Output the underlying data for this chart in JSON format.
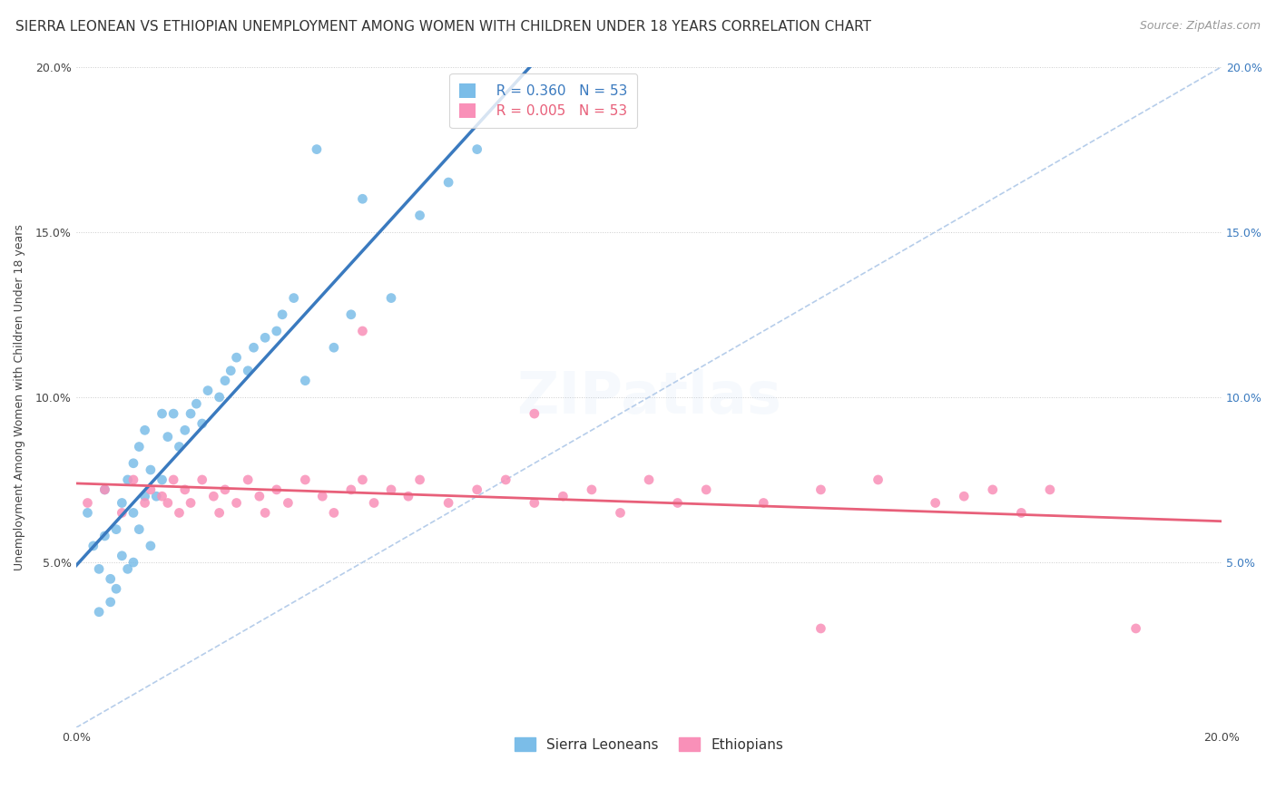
{
  "title": "SIERRA LEONEAN VS ETHIOPIAN UNEMPLOYMENT AMONG WOMEN WITH CHILDREN UNDER 18 YEARS CORRELATION CHART",
  "source": "Source: ZipAtlas.com",
  "ylabel": "Unemployment Among Women with Children Under 18 years",
  "xlim": [
    0.0,
    0.2
  ],
  "ylim": [
    0.0,
    0.2
  ],
  "sierra_leonean_color": "#7bbde8",
  "ethiopian_color": "#f990b8",
  "sierra_trend_color": "#3a7abf",
  "ethiopian_trend_color": "#e8607a",
  "dashed_line_color": "#aec8e8",
  "background_color": "#ffffff",
  "title_fontsize": 11,
  "source_fontsize": 9,
  "label_fontsize": 9,
  "tick_fontsize": 9,
  "legend_fontsize": 11,
  "watermark_alpha": 0.1,
  "sl_x": [
    0.002,
    0.003,
    0.004,
    0.004,
    0.005,
    0.005,
    0.006,
    0.006,
    0.007,
    0.007,
    0.008,
    0.008,
    0.009,
    0.009,
    0.01,
    0.01,
    0.01,
    0.011,
    0.011,
    0.012,
    0.012,
    0.013,
    0.013,
    0.014,
    0.015,
    0.015,
    0.016,
    0.017,
    0.018,
    0.019,
    0.02,
    0.021,
    0.022,
    0.023,
    0.025,
    0.026,
    0.027,
    0.028,
    0.03,
    0.031,
    0.033,
    0.035,
    0.036,
    0.038,
    0.04,
    0.042,
    0.045,
    0.048,
    0.05,
    0.055,
    0.06,
    0.065,
    0.07
  ],
  "sl_y": [
    0.065,
    0.055,
    0.048,
    0.035,
    0.072,
    0.058,
    0.045,
    0.038,
    0.06,
    0.042,
    0.068,
    0.052,
    0.075,
    0.048,
    0.08,
    0.065,
    0.05,
    0.085,
    0.06,
    0.09,
    0.07,
    0.078,
    0.055,
    0.07,
    0.095,
    0.075,
    0.088,
    0.095,
    0.085,
    0.09,
    0.095,
    0.098,
    0.092,
    0.102,
    0.1,
    0.105,
    0.108,
    0.112,
    0.108,
    0.115,
    0.118,
    0.12,
    0.125,
    0.13,
    0.105,
    0.175,
    0.115,
    0.125,
    0.16,
    0.13,
    0.155,
    0.165,
    0.175
  ],
  "eth_x": [
    0.002,
    0.005,
    0.008,
    0.01,
    0.012,
    0.013,
    0.015,
    0.016,
    0.017,
    0.018,
    0.019,
    0.02,
    0.022,
    0.024,
    0.025,
    0.026,
    0.028,
    0.03,
    0.032,
    0.033,
    0.035,
    0.037,
    0.04,
    0.043,
    0.045,
    0.048,
    0.05,
    0.052,
    0.055,
    0.058,
    0.06,
    0.065,
    0.07,
    0.075,
    0.08,
    0.085,
    0.09,
    0.095,
    0.1,
    0.105,
    0.11,
    0.12,
    0.13,
    0.14,
    0.15,
    0.155,
    0.16,
    0.165,
    0.17,
    0.05,
    0.08,
    0.13,
    0.185
  ],
  "eth_y": [
    0.068,
    0.072,
    0.065,
    0.075,
    0.068,
    0.072,
    0.07,
    0.068,
    0.075,
    0.065,
    0.072,
    0.068,
    0.075,
    0.07,
    0.065,
    0.072,
    0.068,
    0.075,
    0.07,
    0.065,
    0.072,
    0.068,
    0.075,
    0.07,
    0.065,
    0.072,
    0.075,
    0.068,
    0.072,
    0.07,
    0.075,
    0.068,
    0.072,
    0.075,
    0.068,
    0.07,
    0.072,
    0.065,
    0.075,
    0.068,
    0.072,
    0.068,
    0.072,
    0.075,
    0.068,
    0.07,
    0.072,
    0.065,
    0.072,
    0.12,
    0.095,
    0.03,
    0.03
  ]
}
